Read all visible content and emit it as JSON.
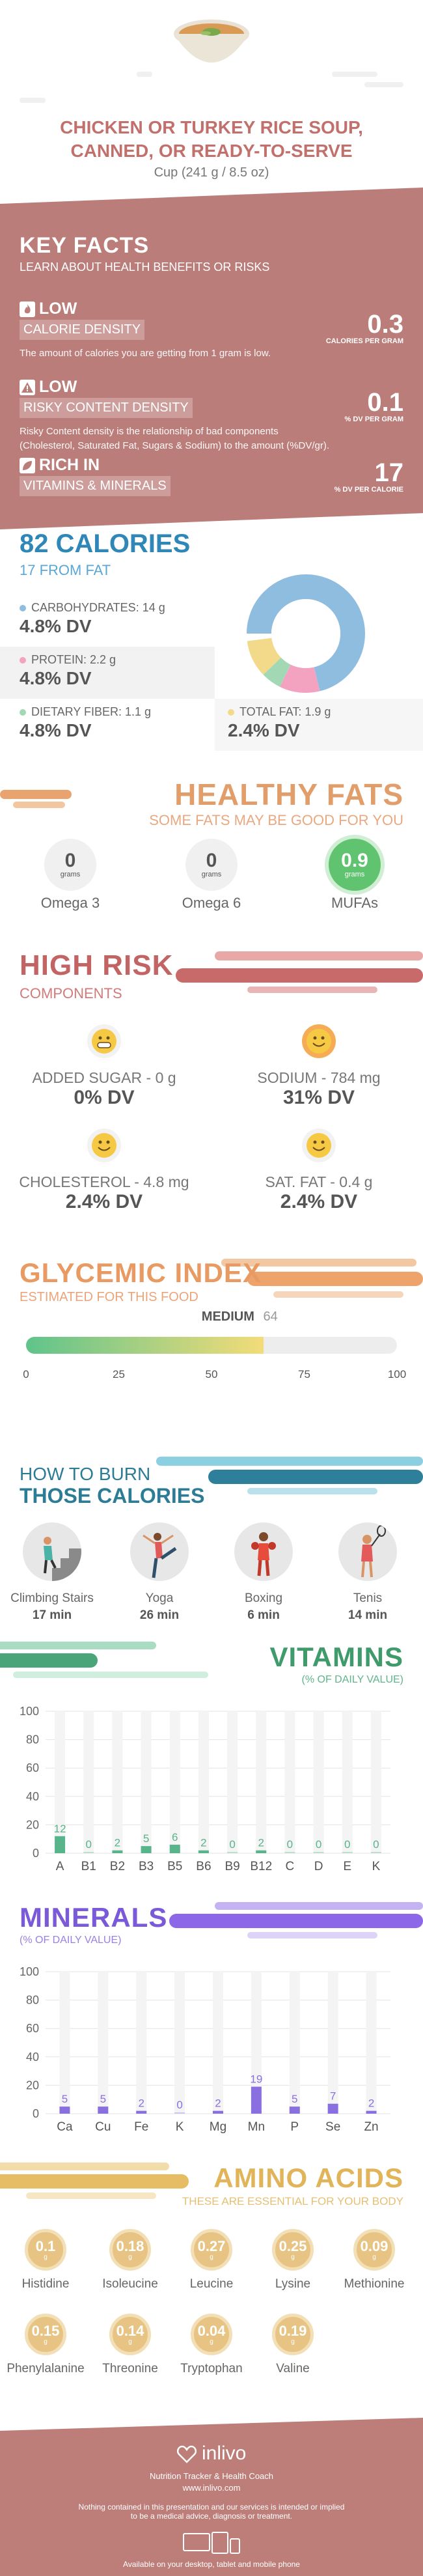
{
  "header": {
    "title_line1": "CHICKEN OR TURKEY RICE SOUP,",
    "title_line2": "CANNED, OR READY-TO-SERVE",
    "serving": "Cup (241 g / 8.5 oz)"
  },
  "key_facts": {
    "title": "KEY FACTS",
    "subtitle": "LEARN ABOUT HEALTH BENEFITS OR RISKS",
    "calorie_density": {
      "level": "LOW",
      "label": "CALORIE DENSITY",
      "value": "0.3",
      "unit": "CALORIES PER GRAM",
      "description": "The amount of calories you are getting from 1 gram is low."
    },
    "risky_density": {
      "level": "LOW",
      "label": "RISKY CONTENT DENSITY",
      "value": "0.1",
      "unit": "% DV PER GRAM",
      "description_line1": "Risky Content density is the relationship of bad components",
      "description_line2": "(Cholesterol, Saturated Fat, Sugars & Sodium) to the amount (%DV/gr)."
    },
    "vitamins_minerals": {
      "level": "RICH IN",
      "label": "VITAMINS & MINERALS",
      "value": "17",
      "unit": "% DV PER CALORIE"
    }
  },
  "calories": {
    "title": "82 CALORIES",
    "subtitle": "17 FROM FAT",
    "carbs": {
      "label": "CARBOHYDRATES: 14 g",
      "dv": "4.8% DV",
      "color": "#8fbde0"
    },
    "protein": {
      "label": "PROTEIN: 2.2 g",
      "dv": "4.8% DV",
      "color": "#f3a3c0"
    },
    "fiber": {
      "label": "DIETARY FIBER: 1.1 g",
      "dv": "4.8% DV",
      "color": "#a3d8b5"
    },
    "fat": {
      "label": "TOTAL FAT: 1.9 g",
      "dv": "2.4% DV",
      "color": "#f3d98a"
    }
  },
  "healthy_fats": {
    "title": "HEALTHY FATS",
    "subtitle": "SOME FATS MAY BE GOOD FOR YOU",
    "items": [
      {
        "value": "0",
        "unit": "grams",
        "name": "Omega 3"
      },
      {
        "value": "0",
        "unit": "grams",
        "name": "Omega 6"
      },
      {
        "value": "0.9",
        "unit": "grams",
        "name": "MUFAs"
      }
    ]
  },
  "high_risk": {
    "title": "HIGH RISK",
    "subtitle": "COMPONENTS",
    "items": [
      {
        "name": "ADDED SUGAR - 0 g",
        "dv": "0% DV"
      },
      {
        "name": "SODIUM - 784 mg",
        "dv": "31% DV"
      },
      {
        "name": "CHOLESTEROL - 4.8 mg",
        "dv": "2.4% DV"
      },
      {
        "name": "SAT. FAT - 0.4 g",
        "dv": "2.4% DV"
      }
    ]
  },
  "glycemic": {
    "title": "GLYCEMIC INDEX",
    "subtitle": "ESTIMATED FOR THIS FOOD",
    "level": "MEDIUM",
    "value": "64",
    "value_num": 64,
    "ticks": [
      "0",
      "25",
      "50",
      "75",
      "100"
    ]
  },
  "burn": {
    "title_line1": "HOW TO BURN",
    "title_line2": "THOSE CALORIES",
    "items": [
      {
        "name": "Climbing Stairs",
        "minutes": "17 min"
      },
      {
        "name": "Yoga",
        "minutes": "26 min"
      },
      {
        "name": "Boxing",
        "minutes": "6 min"
      },
      {
        "name": "Tenis",
        "minutes": "14 min"
      }
    ]
  },
  "vitamins": {
    "title": "VITAMINS",
    "subtitle": "(% OF DAILY VALUE)"
  },
  "minerals": {
    "title": "MINERALS",
    "subtitle": "(% OF DAILY VALUE)"
  },
  "chart_data": [
    {
      "type": "bar",
      "categories": [
        "A",
        "B1",
        "B2",
        "B3",
        "B5",
        "B6",
        "B9",
        "B12",
        "C",
        "D",
        "E",
        "K"
      ],
      "values": [
        12,
        0,
        2,
        5,
        6,
        2,
        0,
        2,
        0,
        0,
        0,
        0
      ],
      "title": "VITAMINS",
      "ylim": [
        0,
        100
      ],
      "yticks": [
        "0",
        "20",
        "40",
        "60",
        "80",
        "100"
      ],
      "color": "#58b48a"
    },
    {
      "type": "bar",
      "categories": [
        "Ca",
        "Cu",
        "Fe",
        "K",
        "Mg",
        "Mn",
        "P",
        "Se",
        "Zn"
      ],
      "values": [
        5,
        5,
        2,
        0,
        2,
        19,
        5,
        7,
        2
      ],
      "title": "MINERALS",
      "ylim": [
        0,
        100
      ],
      "yticks": [
        "0",
        "20",
        "40",
        "60",
        "80",
        "100"
      ],
      "color": "#8a6fe0"
    }
  ],
  "amino_acids": {
    "title": "AMINO ACIDS",
    "subtitle": "THESE ARE ESSENTIAL FOR YOUR BODY",
    "unit": "g",
    "items": [
      {
        "value": "0.1",
        "name": "Histidine"
      },
      {
        "value": "0.18",
        "name": "Isoleucine"
      },
      {
        "value": "0.27",
        "name": "Leucine"
      },
      {
        "value": "0.25",
        "name": "Lysine"
      },
      {
        "value": "0.09",
        "name": "Methionine"
      },
      {
        "value": "0.15",
        "name": "Phenylalanine"
      },
      {
        "value": "0.14",
        "name": "Threonine"
      },
      {
        "value": "0.04",
        "name": "Tryptophan"
      },
      {
        "value": "0.19",
        "name": "Valine"
      }
    ]
  },
  "footer": {
    "brand": "inlivo",
    "tagline": "Nutrition Tracker & Health Coach",
    "url": "www.inlivo.com",
    "disclaimer_line1": "Nothing contained in this presentation and our services is intended or implied",
    "disclaimer_line2": "to be a medical advice, diagnosis or treatment.",
    "devices": "Available on your desktop, tablet and mobile phone"
  }
}
